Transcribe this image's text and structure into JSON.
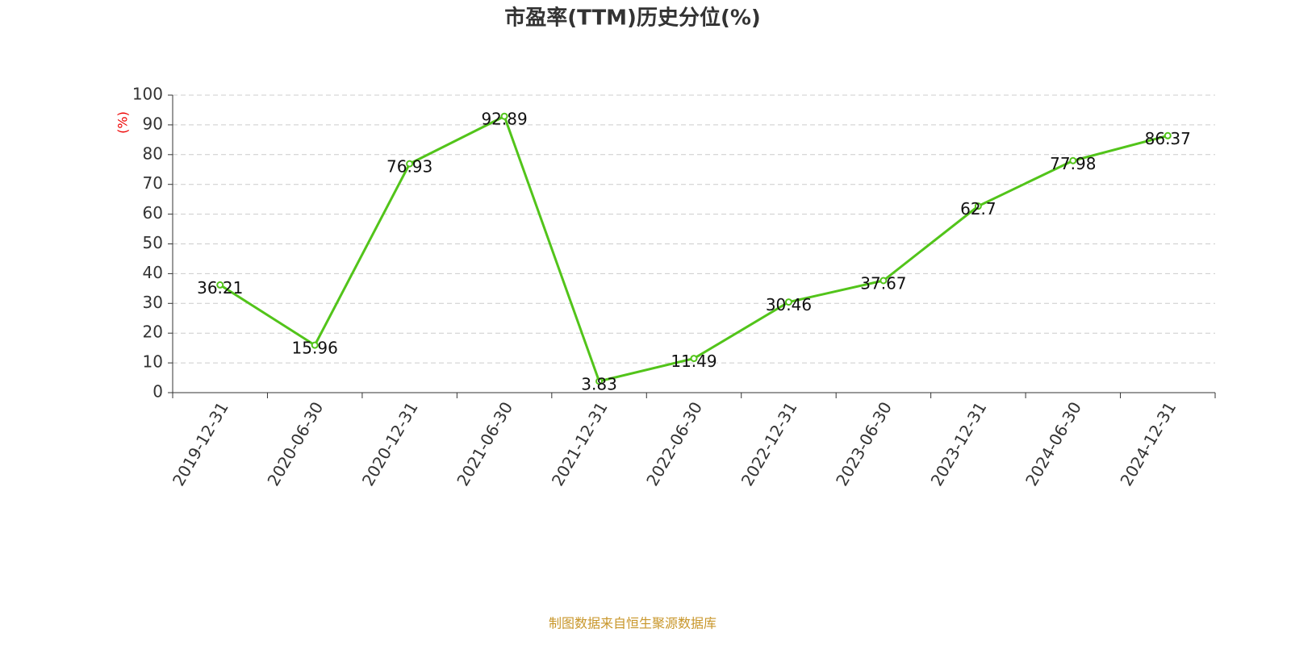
{
  "chart_data": {
    "type": "line",
    "title": "市盈率(TTM)历史分位(%)",
    "y_label": "(%)",
    "categories": [
      "2019-12-31",
      "2020-06-30",
      "2020-12-31",
      "2021-06-30",
      "2021-12-31",
      "2022-06-30",
      "2022-12-31",
      "2023-06-30",
      "2023-12-31",
      "2024-06-30",
      "2024-12-31"
    ],
    "series": [
      {
        "name": "市盈率(TTM)历史分位",
        "color": "#52c41a",
        "values": [
          36.21,
          15.96,
          76.93,
          92.89,
          3.83,
          11.49,
          30.46,
          37.67,
          62.7,
          77.98,
          86.37
        ]
      }
    ],
    "ylim": [
      0,
      100
    ],
    "yticks": [
      0,
      10,
      20,
      30,
      40,
      50,
      60,
      70,
      80,
      90,
      100
    ],
    "grid": true,
    "source": "制图数据来自恒生聚源数据库"
  }
}
